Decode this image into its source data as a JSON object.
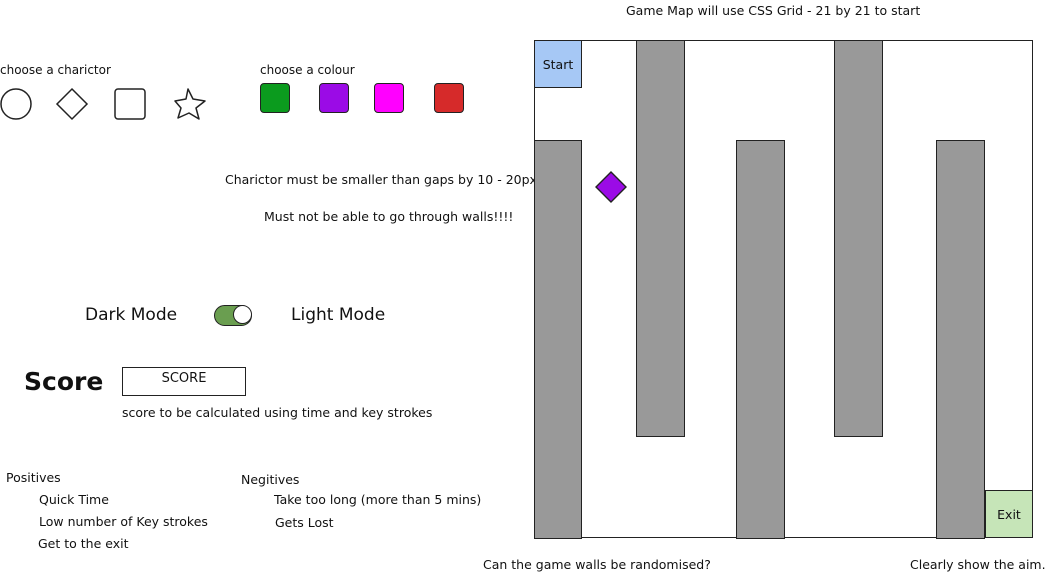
{
  "map_title": "Game Map will use CSS Grid - 21 by 21 to start",
  "character": {
    "label": "choose a charictor",
    "options": [
      "circle-icon",
      "diamond-icon",
      "square-icon",
      "star-icon"
    ]
  },
  "colour": {
    "label": "choose a colour",
    "options": [
      {
        "name": "green",
        "hex": "#0b9b1e"
      },
      {
        "name": "purple",
        "hex": "#9b0be6"
      },
      {
        "name": "magenta",
        "hex": "#ff00ff"
      },
      {
        "name": "red",
        "hex": "#d62a2a"
      }
    ]
  },
  "notes": {
    "size_rule": "Charictor must be smaller than gaps by 10 - 20px",
    "walls_rule": "Must not be able to go through walls!!!!",
    "randomise": "Can the game walls be randomised?",
    "aim": "Clearly show the aim."
  },
  "mode": {
    "dark_label": "Dark Mode",
    "light_label": "Light Mode",
    "toggle_color": "#6a9e50"
  },
  "score": {
    "label": "Score",
    "box_text": "SCORE",
    "note": "score to be calculated using time and key strokes"
  },
  "positives": {
    "title": "Positives",
    "items": [
      "Quick Time",
      "Low number of Key strokes",
      "Get to the exit"
    ]
  },
  "negatives": {
    "title": "Negitives",
    "items": [
      "Take too long (more than 5 mins)",
      "Gets Lost"
    ]
  },
  "map": {
    "start_label": "Start",
    "exit_label": "Exit",
    "start_color": "#a6c8f5",
    "exit_color": "#c6e5b8",
    "wall_color": "#999999",
    "player_color": "#9b0be6"
  }
}
